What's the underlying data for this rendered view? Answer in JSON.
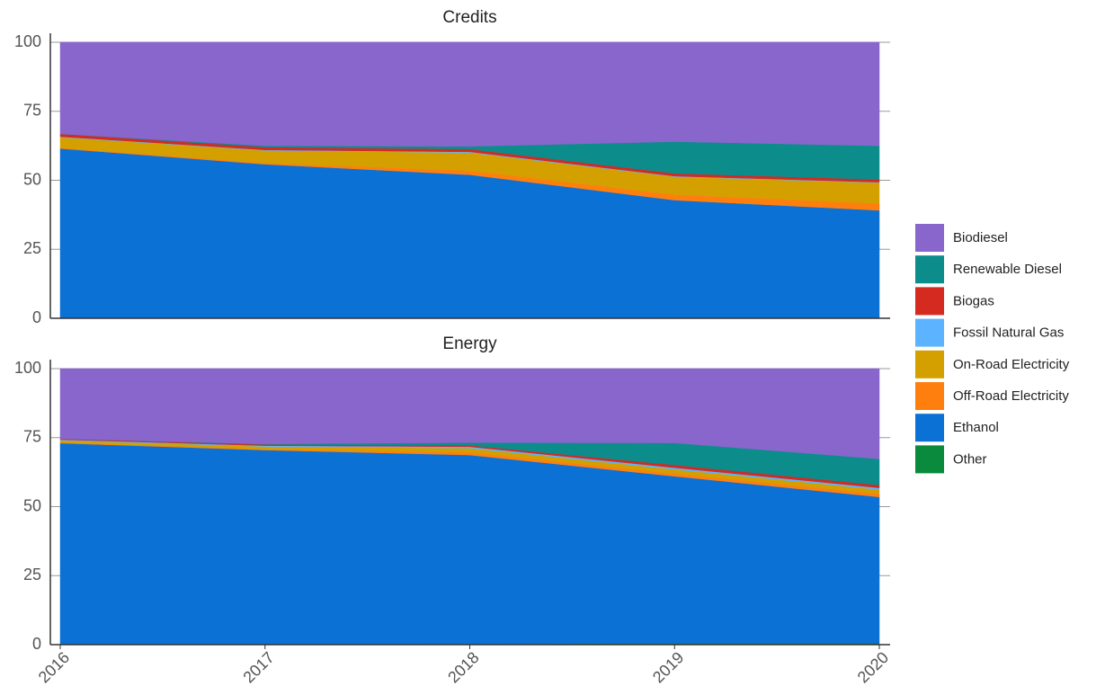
{
  "chart_data": [
    {
      "type": "area",
      "title": "Credits",
      "x": [
        2016,
        2017,
        2018,
        2019,
        2020
      ],
      "xlim": [
        2016,
        2020
      ],
      "ylim": [
        0,
        100
      ],
      "yticks": [
        0,
        25,
        50,
        75,
        100
      ],
      "grid": true,
      "stacked": true,
      "legend": "right",
      "series": [
        {
          "name": "Biodiesel",
          "color": "#8866cc",
          "values": [
            33.2,
            37.5,
            37.7,
            36,
            37.5
          ]
        },
        {
          "name": "Renewable Diesel",
          "color": "#0d8c8c",
          "values": [
            0,
            0.5,
            1,
            11.5,
            12.2
          ]
        },
        {
          "name": "Biogas",
          "color": "#d42a20",
          "values": [
            1,
            1,
            1,
            1,
            1
          ]
        },
        {
          "name": "Fossil Natural Gas",
          "color": "#5cb3ff",
          "values": [
            0.2,
            0.2,
            0.3,
            0.2,
            0.2
          ]
        },
        {
          "name": "On-Road Electricity",
          "color": "#d4a000",
          "values": [
            3.8,
            4.5,
            6.5,
            6.5,
            7.5
          ]
        },
        {
          "name": "Off-Road Electricity",
          "color": "#ff7f0e",
          "values": [
            0.3,
            0.5,
            1.5,
            2,
            2.5
          ]
        },
        {
          "name": "Ethanol",
          "color": "#0c71d4",
          "values": [
            61.5,
            55.8,
            52,
            42.5,
            38.8
          ]
        },
        {
          "name": "Other",
          "color": "#0a8a3c",
          "values": [
            0,
            0,
            0,
            0.3,
            0.3
          ]
        }
      ]
    },
    {
      "type": "area",
      "title": "Energy",
      "x": [
        2016,
        2017,
        2018,
        2019,
        2020
      ],
      "xlim": [
        2016,
        2020
      ],
      "xticks": [
        2016,
        2017,
        2018,
        2019,
        2020
      ],
      "ylim": [
        0,
        100
      ],
      "yticks": [
        0,
        25,
        50,
        75,
        100
      ],
      "grid": true,
      "stacked": true,
      "series": [
        {
          "values": [
            25.4,
            27.3,
            26.8,
            26.9,
            32.7
          ]
        },
        {
          "values": [
            0,
            0.2,
            1,
            8,
            9.5
          ]
        },
        {
          "values": [
            0.3,
            0.4,
            0.5,
            1,
            1
          ]
        },
        {
          "values": [
            0.3,
            0.3,
            0.5,
            0.6,
            0.6
          ]
        },
        {
          "values": [
            0.8,
            1,
            1.5,
            1.5,
            1.5
          ]
        },
        {
          "values": [
            0.2,
            0.3,
            1,
            1,
            1.2
          ]
        },
        {
          "values": [
            73,
            70.5,
            68.5,
            60.5,
            53
          ]
        },
        {
          "values": [
            0,
            0,
            0.2,
            0.5,
            0.5
          ]
        }
      ]
    }
  ]
}
